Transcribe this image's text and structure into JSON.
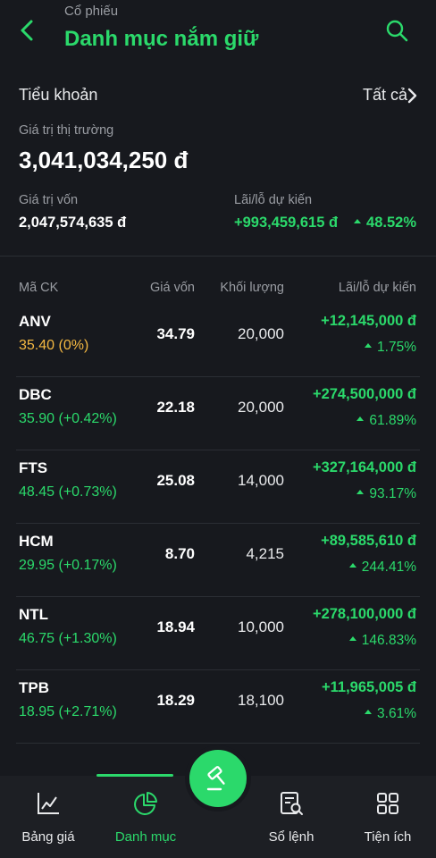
{
  "header": {
    "subtitle": "Cổ phiếu",
    "title": "Danh mục nắm giữ"
  },
  "account": {
    "sub_account_label": "Tiểu khoản",
    "sub_account_value": "Tất cả"
  },
  "summary": {
    "market_value_label": "Giá trị thị trường",
    "market_value": "3,041,034,250 đ",
    "capital_label": "Giá trị vốn",
    "capital_value": "2,047,574,635 đ",
    "pnl_label": "Lãi/lỗ dự kiến",
    "pnl_value": "+993,459,615 đ",
    "pnl_percent": "48.52%"
  },
  "table": {
    "headers": {
      "symbol": "Mã CK",
      "cost": "Giá vốn",
      "quantity": "Khối lượng",
      "pnl": "Lãi/lỗ dự kiến"
    },
    "rows": [
      {
        "symbol": "ANV",
        "price": "35.40 (0%)",
        "price_color": "#f5b942",
        "cost": "34.79",
        "quantity": "20,000",
        "pnl": "+12,145,000 đ",
        "pnl_pct": "1.75%"
      },
      {
        "symbol": "DBC",
        "price": "35.90 (+0.42%)",
        "price_color": "#2bd96b",
        "cost": "22.18",
        "quantity": "20,000",
        "pnl": "+274,500,000 đ",
        "pnl_pct": "61.89%"
      },
      {
        "symbol": "FTS",
        "price": "48.45 (+0.73%)",
        "price_color": "#2bd96b",
        "cost": "25.08",
        "quantity": "14,000",
        "pnl": "+327,164,000 đ",
        "pnl_pct": "93.17%"
      },
      {
        "symbol": "HCM",
        "price": "29.95 (+0.17%)",
        "price_color": "#2bd96b",
        "cost": "8.70",
        "quantity": "4,215",
        "pnl": "+89,585,610 đ",
        "pnl_pct": "244.41%"
      },
      {
        "symbol": "NTL",
        "price": "46.75 (+1.30%)",
        "price_color": "#2bd96b",
        "cost": "18.94",
        "quantity": "10,000",
        "pnl": "+278,100,000 đ",
        "pnl_pct": "146.83%"
      },
      {
        "symbol": "TPB",
        "price": "18.95 (+2.71%)",
        "price_color": "#2bd96b",
        "cost": "18.29",
        "quantity": "18,100",
        "pnl": "+11,965,005 đ",
        "pnl_pct": "3.61%"
      }
    ]
  },
  "nav": {
    "items": [
      {
        "label": "Bảng giá",
        "icon": "line-chart-icon"
      },
      {
        "label": "Danh mục",
        "icon": "pie-chart-icon",
        "active": true
      },
      {
        "label": "Sổ lệnh",
        "icon": "order-book-icon"
      },
      {
        "label": "Tiện ích",
        "icon": "grid-icon"
      }
    ],
    "fab_icon": "gavel-icon"
  },
  "colors": {
    "accent": "#2bd96b",
    "background": "#17191e",
    "neutral_price": "#f5b942"
  }
}
